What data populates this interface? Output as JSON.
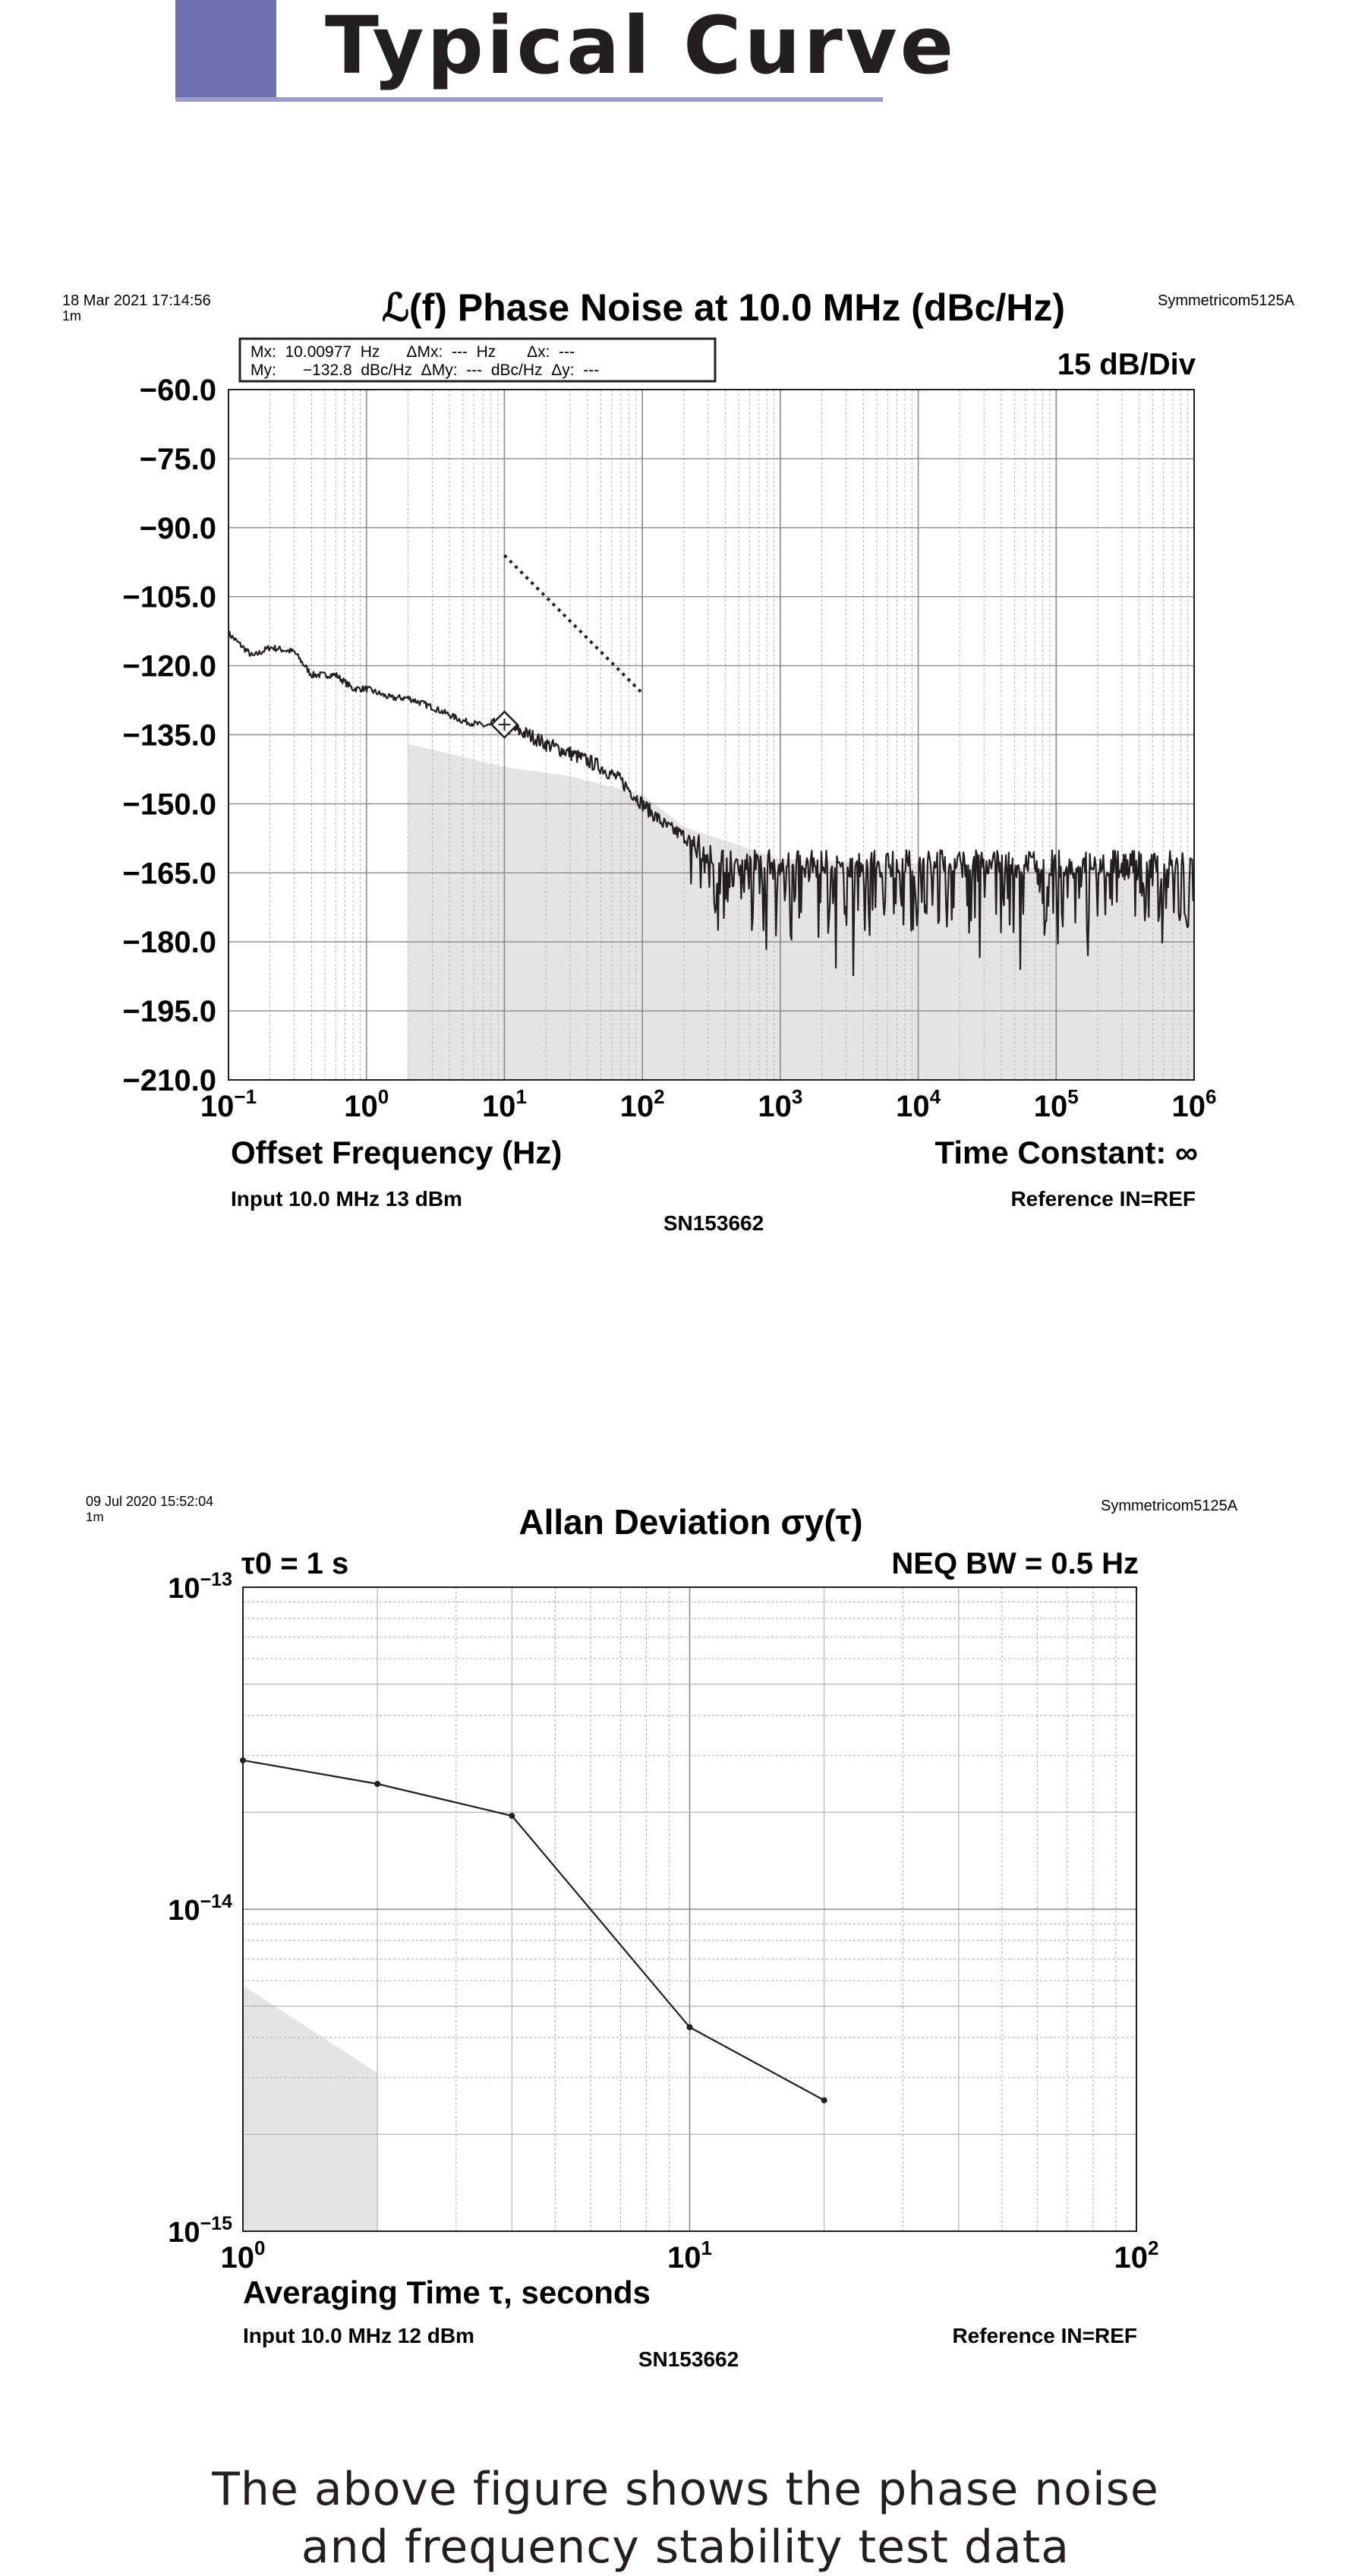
{
  "header": {
    "title": "Typical Curve"
  },
  "phase_noise": {
    "timestamp": "18 Mar 2021 17:14:56",
    "timestamp_sub": "1m",
    "instrument": "Symmetricom5125A",
    "title": "ℒ(f) Phase Noise at 10.0 MHz (dBc/Hz)",
    "scale": "15 dB/Div",
    "marker_box": {
      "row1": "Mx:  10.00977  Hz      ΔMx:  ---  Hz       Δx:  ---",
      "row2": "My:      −132.8  dBc/Hz  ΔMy:  ---  dBc/Hz  Δy:  ---"
    },
    "xlabel": "Offset Frequency (Hz)",
    "time_constant": "Time Constant: ∞",
    "input": "Input 10.0 MHz 13 dBm",
    "reference": "Reference IN=REF",
    "serial": "SN153662",
    "yticks": [
      "−60.0",
      "−75.0",
      "−90.0",
      "−105.0",
      "−120.0",
      "−135.0",
      "−150.0",
      "−165.0",
      "−180.0",
      "−195.0",
      "−210.0"
    ],
    "xticks": [
      {
        "base": "10",
        "exp": "−1"
      },
      {
        "base": "10",
        "exp": "0"
      },
      {
        "base": "10",
        "exp": "1"
      },
      {
        "base": "10",
        "exp": "2"
      },
      {
        "base": "10",
        "exp": "3"
      },
      {
        "base": "10",
        "exp": "4"
      },
      {
        "base": "10",
        "exp": "5"
      },
      {
        "base": "10",
        "exp": "6"
      }
    ]
  },
  "allan": {
    "timestamp": "09 Jul 2020 15:52:04",
    "timestamp_sub": "1m",
    "instrument": "Symmetricom5125A",
    "title": "Allan Deviation σy(τ)",
    "tau0": "τ0 = 1 s",
    "neq_bw": "NEQ BW = 0.5 Hz",
    "xlabel": "Averaging Time τ, seconds",
    "input": "Input 10.0 MHz 12 dBm",
    "reference": "Reference IN=REF",
    "serial": "SN153662",
    "yticks": [
      {
        "base": "10",
        "exp": "−13"
      },
      {
        "base": "10",
        "exp": "−14"
      },
      {
        "base": "10",
        "exp": "−15"
      }
    ],
    "xticks": [
      {
        "base": "10",
        "exp": "0"
      },
      {
        "base": "10",
        "exp": "1"
      },
      {
        "base": "10",
        "exp": "2"
      }
    ]
  },
  "caption": {
    "line1": "The above figure shows the phase noise",
    "line2": "and frequency stability test data"
  },
  "chart_data": [
    {
      "type": "line",
      "title": "ℒ(f) Phase Noise at 10.0 MHz (dBc/Hz)",
      "xlabel": "Offset Frequency (Hz)",
      "ylabel": "",
      "xscale": "log",
      "xlim": [
        0.1,
        1000000
      ],
      "ylim": [
        -210,
        -60
      ],
      "grid": true,
      "x": [
        0.1,
        0.15,
        0.2,
        0.3,
        0.4,
        0.6,
        0.8,
        1,
        1.5,
        2,
        3,
        5,
        7,
        10,
        15,
        20,
        30,
        50,
        70,
        100,
        150,
        200,
        300,
        500,
        1000,
        2000,
        5000,
        10000,
        20000,
        50000,
        100000,
        200000,
        500000,
        1000000
      ],
      "y": [
        -113,
        -118,
        -116,
        -117,
        -122,
        -122,
        -125,
        -125,
        -127,
        -127,
        -129,
        -132,
        -133,
        -133,
        -135,
        -137,
        -139,
        -142,
        -145,
        -150,
        -155,
        -157,
        -161,
        -163,
        -163,
        -163,
        -163,
        -163,
        -163,
        -163,
        -163,
        -163,
        -163,
        -163
      ],
      "floor_x": [
        2,
        10,
        30,
        100,
        200,
        1000,
        1000000
      ],
      "floor_y": [
        -137,
        -142,
        -144,
        -148,
        -155,
        -162,
        -165
      ],
      "slope_line": {
        "x": [
          10,
          100
        ],
        "y": [
          -96,
          -126
        ]
      },
      "marker": {
        "x": 10.00977,
        "y": -132.8
      }
    },
    {
      "type": "line",
      "title": "Allan Deviation σy(τ)",
      "xlabel": "Averaging Time τ, seconds",
      "ylabel": "",
      "xscale": "log",
      "yscale": "log",
      "xlim": [
        1,
        100
      ],
      "ylim": [
        1e-15,
        1e-13
      ],
      "grid": true,
      "x": [
        1,
        2,
        4,
        10,
        20
      ],
      "y": [
        2.9e-14,
        2.45e-14,
        1.95e-14,
        4.3e-15,
        2.55e-15
      ],
      "floor_x": [
        1,
        2
      ],
      "floor_y": [
        5.8e-15,
        3.1e-15
      ]
    }
  ]
}
